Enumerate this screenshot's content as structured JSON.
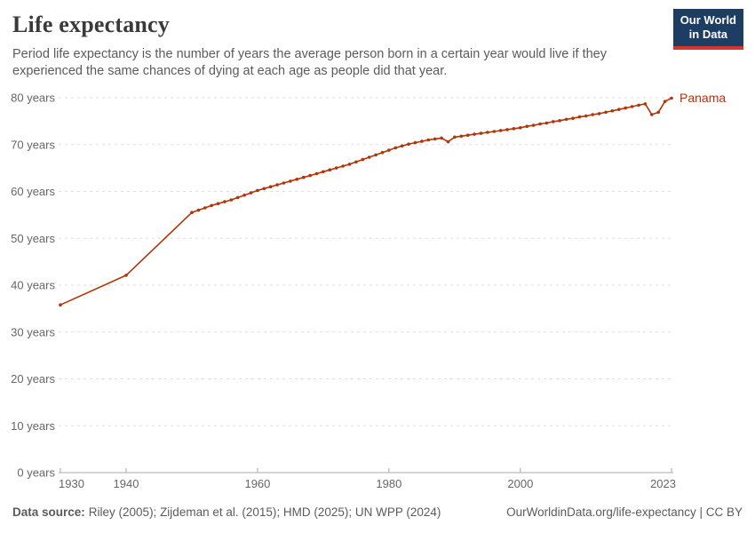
{
  "header": {
    "title": "Life expectancy",
    "subtitle": "Period life expectancy is the number of years the average person born in a certain year would live if they experienced the same chances of dying at each age as people did that year.",
    "logo": {
      "line1": "Our World",
      "line2": "in Data"
    }
  },
  "footer": {
    "source_label": "Data source:",
    "source_text": "Riley (2005); Zijdeman et al. (2015); HMD (2025); UN WPP (2024)",
    "link_text": "OurWorldinData.org/life-expectancy | CC BY"
  },
  "colors": {
    "series": "#b13507",
    "title_text": "#3a3a3a",
    "body_text": "#5b5b5b",
    "tick_text": "#666666",
    "gridline": "#dedede",
    "axis": "#a8a8a8",
    "logo_bg": "#1d3d63",
    "logo_stripe": "#d6352a"
  },
  "chart_data": {
    "type": "line",
    "title": "Life expectancy",
    "xlabel": "",
    "ylabel": "",
    "xlim": [
      1930,
      2023
    ],
    "ylim": [
      0,
      80
    ],
    "x_ticks": [
      1930,
      1940,
      1960,
      1980,
      2000,
      2023
    ],
    "y_ticks": [
      0,
      10,
      20,
      30,
      40,
      50,
      60,
      70,
      80
    ],
    "y_tick_suffix": " years",
    "grid": "horizontal-dashed",
    "legend": "series-end-label",
    "series": [
      {
        "name": "Panama",
        "color": "#b13507",
        "points": [
          [
            1930,
            35.8
          ],
          [
            1940,
            42.1
          ],
          [
            1950,
            55.5
          ],
          [
            1951,
            56.0
          ],
          [
            1952,
            56.5
          ],
          [
            1953,
            57.0
          ],
          [
            1954,
            57.4
          ],
          [
            1955,
            57.8
          ],
          [
            1956,
            58.2
          ],
          [
            1957,
            58.7
          ],
          [
            1958,
            59.2
          ],
          [
            1959,
            59.7
          ],
          [
            1960,
            60.2
          ],
          [
            1961,
            60.6
          ],
          [
            1962,
            61.0
          ],
          [
            1963,
            61.4
          ],
          [
            1964,
            61.8
          ],
          [
            1965,
            62.2
          ],
          [
            1966,
            62.6
          ],
          [
            1967,
            63.0
          ],
          [
            1968,
            63.4
          ],
          [
            1969,
            63.8
          ],
          [
            1970,
            64.2
          ],
          [
            1971,
            64.6
          ],
          [
            1972,
            65.0
          ],
          [
            1973,
            65.4
          ],
          [
            1974,
            65.8
          ],
          [
            1975,
            66.3
          ],
          [
            1976,
            66.8
          ],
          [
            1977,
            67.3
          ],
          [
            1978,
            67.8
          ],
          [
            1979,
            68.3
          ],
          [
            1980,
            68.8
          ],
          [
            1981,
            69.3
          ],
          [
            1982,
            69.7
          ],
          [
            1983,
            70.1
          ],
          [
            1984,
            70.4
          ],
          [
            1985,
            70.7
          ],
          [
            1986,
            71.0
          ],
          [
            1987,
            71.2
          ],
          [
            1988,
            71.4
          ],
          [
            1989,
            70.6
          ],
          [
            1990,
            71.6
          ],
          [
            1991,
            71.8
          ],
          [
            1992,
            72.0
          ],
          [
            1993,
            72.2
          ],
          [
            1994,
            72.4
          ],
          [
            1995,
            72.6
          ],
          [
            1996,
            72.8
          ],
          [
            1997,
            73.0
          ],
          [
            1998,
            73.2
          ],
          [
            1999,
            73.4
          ],
          [
            2000,
            73.6
          ],
          [
            2001,
            73.9
          ],
          [
            2002,
            74.1
          ],
          [
            2003,
            74.4
          ],
          [
            2004,
            74.6
          ],
          [
            2005,
            74.9
          ],
          [
            2006,
            75.1
          ],
          [
            2007,
            75.4
          ],
          [
            2008,
            75.6
          ],
          [
            2009,
            75.9
          ],
          [
            2010,
            76.1
          ],
          [
            2011,
            76.4
          ],
          [
            2012,
            76.6
          ],
          [
            2013,
            76.9
          ],
          [
            2014,
            77.2
          ],
          [
            2015,
            77.5
          ],
          [
            2016,
            77.8
          ],
          [
            2017,
            78.1
          ],
          [
            2018,
            78.4
          ],
          [
            2019,
            78.7
          ],
          [
            2020,
            76.4
          ],
          [
            2021,
            76.9
          ],
          [
            2022,
            79.2
          ],
          [
            2023,
            79.9
          ]
        ]
      }
    ]
  }
}
